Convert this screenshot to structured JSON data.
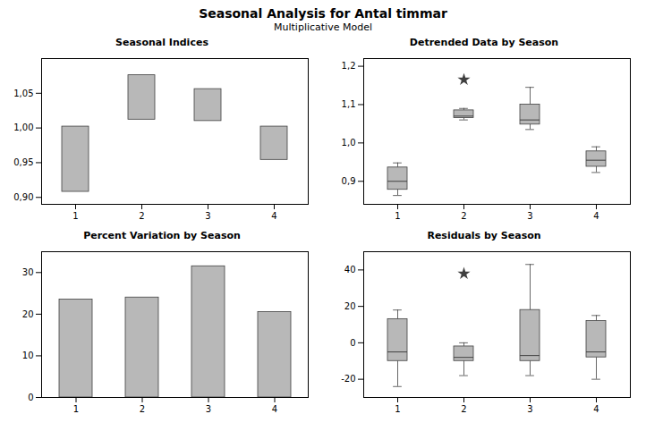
{
  "title": "Seasonal Analysis for Antal timmar",
  "subtitle": "Multiplicative Model",
  "chart_data": [
    {
      "type": "range_bar",
      "title": "Seasonal Indices",
      "categories": [
        "1",
        "2",
        "3",
        "4"
      ],
      "low": [
        0.908,
        1.012,
        1.01,
        0.954
      ],
      "high": [
        1.002,
        1.076,
        1.056,
        1.002
      ],
      "color": "#b8b8b8",
      "ylim": [
        0.89,
        1.1
      ],
      "yticks": [
        {
          "value": 0.9,
          "label": "0,90"
        },
        {
          "value": 0.95,
          "label": "0,95"
        },
        {
          "value": 1.0,
          "label": "1,00"
        },
        {
          "value": 1.05,
          "label": "1,05"
        }
      ],
      "grid": false
    },
    {
      "type": "box",
      "title": "Detrended Data by Season",
      "categories": [
        "1",
        "2",
        "3",
        "4"
      ],
      "q1": [
        0.878,
        1.065,
        1.048,
        0.938
      ],
      "median": [
        0.9,
        1.07,
        1.06,
        0.955
      ],
      "q3": [
        0.936,
        1.085,
        1.1,
        0.978
      ],
      "whislo": [
        0.863,
        1.06,
        1.035,
        0.923
      ],
      "whishi": [
        0.948,
        1.09,
        1.145,
        0.99
      ],
      "fliers": [
        [],
        [
          1.165
        ],
        [],
        []
      ],
      "color": "#b8b8b8",
      "ylim": [
        0.84,
        1.22
      ],
      "yticks": [
        {
          "value": 0.9,
          "label": "0,9"
        },
        {
          "value": 1.0,
          "label": "1,0"
        },
        {
          "value": 1.1,
          "label": "1,1"
        },
        {
          "value": 1.2,
          "label": "1,2"
        }
      ],
      "grid": false
    },
    {
      "type": "bar",
      "title": "Percent Variation by Season",
      "categories": [
        "1",
        "2",
        "3",
        "4"
      ],
      "values": [
        23.5,
        24.0,
        31.5,
        20.5
      ],
      "color": "#b8b8b8",
      "ylim": [
        0,
        35
      ],
      "yticks": [
        0,
        10,
        20,
        30
      ],
      "grid": false
    },
    {
      "type": "box",
      "title": "Residuals by Season",
      "categories": [
        "1",
        "2",
        "3",
        "4"
      ],
      "q1": [
        -10,
        -10,
        -10,
        -8
      ],
      "median": [
        -5,
        -8,
        -7,
        -5
      ],
      "q3": [
        13,
        -2,
        18,
        12
      ],
      "whislo": [
        -24,
        -18,
        -18,
        -20
      ],
      "whishi": [
        18,
        0,
        43,
        15
      ],
      "fliers": [
        [],
        [
          38
        ],
        [],
        []
      ],
      "color": "#b8b8b8",
      "ylim": [
        -30,
        50
      ],
      "yticks": [
        -20,
        0,
        20,
        40
      ],
      "grid": false
    }
  ]
}
